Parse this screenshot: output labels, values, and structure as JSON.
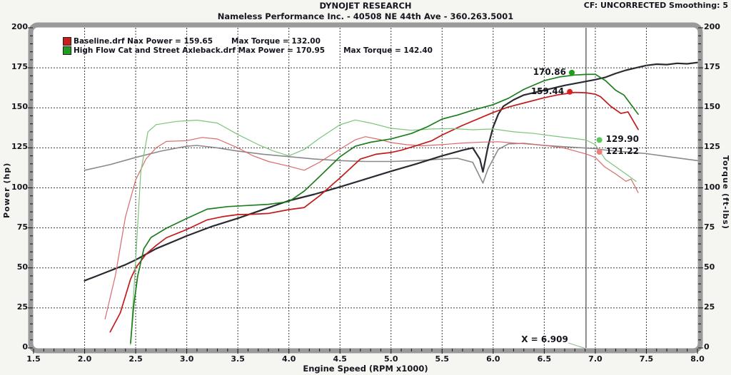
{
  "header": {
    "title": "DYNOJET RESEARCH",
    "subtitle": "Nameless Performance Inc. - 40508 NE 44th Ave - 360.263.5001",
    "cf_label": "CF: UNCORRECTED  Smoothing: 5"
  },
  "legend": {
    "rows": [
      {
        "file": "Baseline.drf",
        "power_label": "Nax Power = 159.65",
        "torque_label": "Max Torque = 132.00",
        "color": "#cc1d1d"
      },
      {
        "file": "High Flow Cat and Street Axleback.drf",
        "power_label": "Max Power = 170.95",
        "torque_label": "Max Torque = 142.40",
        "color": "#1e9e1e"
      }
    ]
  },
  "chart_data": {
    "type": "line",
    "title": "DYNOJET RESEARCH",
    "xlabel": "Engine Speed (RPM x1000)",
    "ylabel_left": "Power (hp)",
    "ylabel_right": "Torque (ft-lbs)",
    "xlim": [
      1.5,
      8.0
    ],
    "ylim": [
      0,
      200
    ],
    "x_major_step": 0.5,
    "x_minor_step": 0.1,
    "y_major_step": 25,
    "y_minor_step": 5,
    "grid": "dashed",
    "x_tick_labels": [
      "1.5",
      "2.0",
      "2.5",
      "3.0",
      "3.5",
      "4.0",
      "4.5",
      "5.0",
      "5.5",
      "6.0",
      "6.5",
      "7.0",
      "7.5",
      "8.0"
    ],
    "y_tick_labels": [
      "0",
      "25",
      "50",
      "75",
      "100",
      "125",
      "150",
      "175",
      "200"
    ],
    "runs": [
      {
        "name": "Baseline.drf",
        "max_power": 159.65,
        "max_torque": 132.0
      },
      {
        "name": "High Flow Cat and Street Axleback.drf",
        "max_power": 170.95,
        "max_torque": 142.4
      },
      {
        "name": "unlabeled overlay run",
        "max_power": null,
        "max_torque": null
      }
    ],
    "series": [
      {
        "id": "overlay-torque",
        "label": "overlay run torque",
        "color": "#8a8a8a",
        "width": 1.6,
        "points": [
          [
            2.0,
            111
          ],
          [
            2.25,
            114.5
          ],
          [
            2.5,
            119
          ],
          [
            2.75,
            123
          ],
          [
            3.0,
            126
          ],
          [
            3.1,
            126.5
          ],
          [
            3.3,
            125
          ],
          [
            3.5,
            123
          ],
          [
            3.75,
            121
          ],
          [
            4.0,
            119.5
          ],
          [
            4.25,
            118
          ],
          [
            4.5,
            117
          ],
          [
            4.75,
            116.5
          ],
          [
            5.0,
            116.5
          ],
          [
            5.25,
            117
          ],
          [
            5.5,
            118
          ],
          [
            5.65,
            118.5
          ],
          [
            5.8,
            116
          ],
          [
            5.9,
            103
          ],
          [
            5.95,
            112
          ],
          [
            6.05,
            124
          ],
          [
            6.15,
            127.5
          ],
          [
            6.3,
            127.8
          ],
          [
            6.5,
            126.5
          ],
          [
            6.75,
            125.5
          ],
          [
            7.0,
            124.5
          ],
          [
            7.1,
            123.6
          ],
          [
            7.3,
            122.5
          ],
          [
            7.5,
            121.4
          ],
          [
            7.75,
            119.2
          ],
          [
            8.0,
            117
          ]
        ]
      },
      {
        "id": "overlay-power",
        "label": "overlay run power",
        "color": "#2a2a32",
        "width": 2.2,
        "points": [
          [
            2.0,
            42
          ],
          [
            2.2,
            47
          ],
          [
            2.4,
            52
          ],
          [
            2.5,
            55
          ],
          [
            2.7,
            62
          ],
          [
            3.0,
            70
          ],
          [
            3.25,
            76
          ],
          [
            3.5,
            81
          ],
          [
            3.75,
            86.5
          ],
          [
            4.0,
            92
          ],
          [
            4.25,
            96
          ],
          [
            4.5,
            100.6
          ],
          [
            4.75,
            105.5
          ],
          [
            5.0,
            110.4
          ],
          [
            5.25,
            115
          ],
          [
            5.5,
            120
          ],
          [
            5.7,
            123.5
          ],
          [
            5.8,
            125
          ],
          [
            5.87,
            118
          ],
          [
            5.9,
            110
          ],
          [
            5.95,
            126
          ],
          [
            6.0,
            138
          ],
          [
            6.05,
            146
          ],
          [
            6.1,
            151
          ],
          [
            6.2,
            155
          ],
          [
            6.3,
            158
          ],
          [
            6.5,
            161
          ],
          [
            6.7,
            164
          ],
          [
            6.909,
            166.5
          ],
          [
            7.0,
            167.6
          ],
          [
            7.1,
            169.1
          ],
          [
            7.2,
            171.5
          ],
          [
            7.3,
            173.5
          ],
          [
            7.4,
            175
          ],
          [
            7.5,
            176.5
          ],
          [
            7.6,
            177.3
          ],
          [
            7.7,
            177
          ],
          [
            7.8,
            177.8
          ],
          [
            7.9,
            177.5
          ],
          [
            8.0,
            178.3
          ]
        ]
      },
      {
        "id": "baseline-torque",
        "label": "Baseline.drf torque",
        "color": "#d96a6a",
        "width": 1.2,
        "points": [
          [
            2.2,
            18
          ],
          [
            2.3,
            45
          ],
          [
            2.4,
            82
          ],
          [
            2.5,
            105
          ],
          [
            2.6,
            118
          ],
          [
            2.7,
            125
          ],
          [
            2.8,
            129
          ],
          [
            3.0,
            129.5
          ],
          [
            3.15,
            131.5
          ],
          [
            3.3,
            130.5
          ],
          [
            3.5,
            125
          ],
          [
            3.65,
            120
          ],
          [
            3.8,
            116.5
          ],
          [
            4.0,
            113.5
          ],
          [
            4.15,
            111
          ],
          [
            4.3,
            116
          ],
          [
            4.5,
            124.2
          ],
          [
            4.65,
            130
          ],
          [
            4.75,
            132
          ],
          [
            4.9,
            130
          ],
          [
            5.0,
            128.3
          ],
          [
            5.15,
            127
          ],
          [
            5.3,
            126.3
          ],
          [
            5.5,
            127
          ],
          [
            5.7,
            128
          ],
          [
            5.9,
            128.6
          ],
          [
            6.05,
            128.8
          ],
          [
            6.2,
            128
          ],
          [
            6.35,
            127.3
          ],
          [
            6.5,
            126.6
          ],
          [
            6.7,
            124.8
          ],
          [
            6.909,
            121.2
          ],
          [
            7.0,
            119
          ],
          [
            7.09,
            113.2
          ],
          [
            7.2,
            108.7
          ],
          [
            7.3,
            104.1
          ],
          [
            7.35,
            105.5
          ],
          [
            7.42,
            97
          ]
        ]
      },
      {
        "id": "baseline-power",
        "label": "Baseline.drf power",
        "color": "#c41a1a",
        "width": 1.7,
        "points": [
          [
            2.25,
            10
          ],
          [
            2.35,
            22
          ],
          [
            2.45,
            43
          ],
          [
            2.5,
            50
          ],
          [
            2.6,
            58.5
          ],
          [
            2.7,
            64
          ],
          [
            2.8,
            68.8
          ],
          [
            3.0,
            74
          ],
          [
            3.2,
            80
          ],
          [
            3.35,
            82
          ],
          [
            3.5,
            83.3
          ],
          [
            3.65,
            83.5
          ],
          [
            3.8,
            84
          ],
          [
            4.0,
            86.4
          ],
          [
            4.15,
            87.7
          ],
          [
            4.3,
            95
          ],
          [
            4.5,
            106.2
          ],
          [
            4.7,
            118
          ],
          [
            4.85,
            121
          ],
          [
            5.0,
            122.1
          ],
          [
            5.1,
            123.5
          ],
          [
            5.25,
            126.4
          ],
          [
            5.4,
            129.5
          ],
          [
            5.5,
            133
          ],
          [
            5.7,
            139
          ],
          [
            5.9,
            144.4
          ],
          [
            6.0,
            147.1
          ],
          [
            6.15,
            150.5
          ],
          [
            6.3,
            153
          ],
          [
            6.5,
            156.3
          ],
          [
            6.65,
            158.3
          ],
          [
            6.8,
            159.65
          ],
          [
            6.909,
            159.44
          ],
          [
            7.0,
            158.5
          ],
          [
            7.05,
            157
          ],
          [
            7.15,
            151
          ],
          [
            7.25,
            146.5
          ],
          [
            7.32,
            147.5
          ],
          [
            7.42,
            136.5
          ]
        ]
      },
      {
        "id": "highflow-torque",
        "label": "High Flow Cat and Street Axleback.drf torque",
        "color": "#7cc47c",
        "width": 1.2,
        "points": [
          [
            2.45,
            2
          ],
          [
            2.5,
            55
          ],
          [
            2.55,
            110
          ],
          [
            2.62,
            135
          ],
          [
            2.7,
            139.5
          ],
          [
            2.9,
            141.5
          ],
          [
            3.1,
            142.3
          ],
          [
            3.3,
            140.5
          ],
          [
            3.5,
            133.3
          ],
          [
            3.7,
            127
          ],
          [
            3.85,
            123
          ],
          [
            4.0,
            120
          ],
          [
            4.15,
            124
          ],
          [
            4.3,
            131
          ],
          [
            4.5,
            139.4
          ],
          [
            4.65,
            142.4
          ],
          [
            4.8,
            140.5
          ],
          [
            5.0,
            137.2
          ],
          [
            5.2,
            136
          ],
          [
            5.4,
            136.8
          ],
          [
            5.6,
            137
          ],
          [
            5.8,
            136.3
          ],
          [
            6.0,
            136.8
          ],
          [
            6.2,
            135
          ],
          [
            6.4,
            134
          ],
          [
            6.6,
            132.3
          ],
          [
            6.8,
            130.8
          ],
          [
            6.909,
            129.9
          ],
          [
            7.0,
            127
          ],
          [
            7.1,
            117.7
          ],
          [
            7.2,
            113.2
          ],
          [
            7.3,
            108.7
          ],
          [
            7.4,
            104
          ]
        ]
      },
      {
        "id": "highflow-power",
        "label": "High Flow Cat and Street Axleback.drf power",
        "color": "#1d7f1d",
        "width": 1.7,
        "points": [
          [
            2.45,
            3
          ],
          [
            2.48,
            26
          ],
          [
            2.52,
            45
          ],
          [
            2.58,
            62
          ],
          [
            2.65,
            69
          ],
          [
            2.8,
            74.8
          ],
          [
            3.0,
            80.9
          ],
          [
            3.2,
            86.7
          ],
          [
            3.4,
            88.3
          ],
          [
            3.6,
            89
          ],
          [
            3.8,
            89.7
          ],
          [
            4.0,
            91.4
          ],
          [
            4.15,
            98
          ],
          [
            4.3,
            107
          ],
          [
            4.5,
            119.4
          ],
          [
            4.65,
            126
          ],
          [
            4.8,
            128.5
          ],
          [
            5.0,
            130.6
          ],
          [
            5.2,
            134
          ],
          [
            5.35,
            138
          ],
          [
            5.5,
            143
          ],
          [
            5.65,
            145.5
          ],
          [
            5.8,
            148.5
          ],
          [
            6.0,
            152
          ],
          [
            6.15,
            156
          ],
          [
            6.3,
            161.5
          ],
          [
            6.5,
            167
          ],
          [
            6.65,
            169.3
          ],
          [
            6.8,
            170.5
          ],
          [
            6.909,
            170.86
          ],
          [
            7.0,
            170.95
          ],
          [
            7.1,
            167
          ],
          [
            7.2,
            161
          ],
          [
            7.28,
            158
          ],
          [
            7.35,
            152
          ],
          [
            7.42,
            146
          ]
        ]
      }
    ],
    "cursor": {
      "x": 6.909,
      "label": "X = 6.909"
    },
    "markers": [
      {
        "label": "170.86",
        "rpm": 6.77,
        "value": 172.0,
        "color": "#18a018",
        "label_side": "left"
      },
      {
        "label": "159.44",
        "rpm": 6.75,
        "value": 160.0,
        "color": "#e02020",
        "label_side": "left"
      },
      {
        "label": "129.90",
        "rpm": 7.04,
        "value": 129.9,
        "color": "#5cc85c",
        "label_side": "right"
      },
      {
        "label": "121.22",
        "rpm": 7.04,
        "value": 122.5,
        "color": "#ef7b7b",
        "label_side": "right"
      }
    ]
  }
}
